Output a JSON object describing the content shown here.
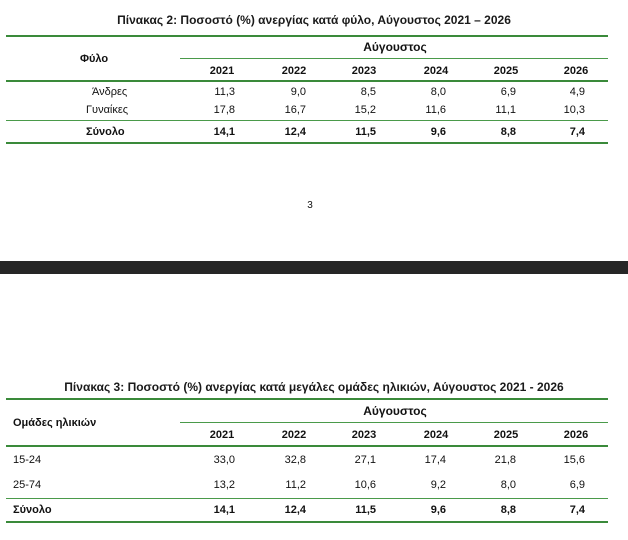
{
  "table2": {
    "title": "Πίνακας 2: Ποσοστό (%) ανεργίας κατά φύλο, Αύγουστος 2021 – 2026",
    "row_header": "Φύλο",
    "group_header": "Αύγουστος",
    "years": [
      "2021",
      "2022",
      "2023",
      "2024",
      "2025",
      "2026"
    ],
    "rows": [
      {
        "label": "Άνδρες",
        "values": [
          "11,3",
          "9,0",
          "8,5",
          "8,0",
          "6,9",
          "4,9"
        ]
      },
      {
        "label": "Γυναίκες",
        "values": [
          "17,8",
          "16,7",
          "15,2",
          "11,6",
          "11,1",
          "10,3"
        ]
      }
    ],
    "total": {
      "label": "Σύνολο",
      "values": [
        "14,1",
        "12,4",
        "11,5",
        "9,6",
        "8,8",
        "7,4"
      ]
    }
  },
  "page_number": "3",
  "table3": {
    "title": "Πίνακας 3: Ποσοστό (%) ανεργίας κατά μεγάλες ομάδες ηλικιών, Αύγουστος 2021 - 2026",
    "row_header": "Ομάδες ηλικιών",
    "group_header": "Αύγουστος",
    "years": [
      "2021",
      "2022",
      "2023",
      "2024",
      "2025",
      "2026"
    ],
    "rows": [
      {
        "label": "15-24",
        "values": [
          "33,0",
          "32,8",
          "27,1",
          "17,4",
          "21,8",
          "15,6"
        ]
      },
      {
        "label": "25-74",
        "values": [
          "13,2",
          "11,2",
          "10,6",
          "9,2",
          "8,0",
          "6,9"
        ]
      }
    ],
    "total": {
      "label": "Σύνολο",
      "values": [
        "14,1",
        "12,4",
        "11,5",
        "9,6",
        "8,8",
        "7,4"
      ]
    }
  }
}
